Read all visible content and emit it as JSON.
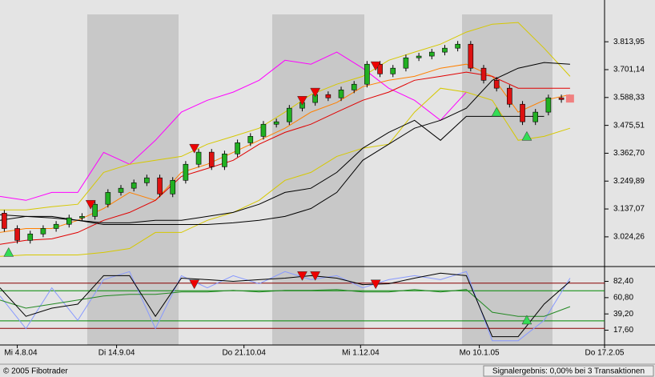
{
  "chart_data": {
    "type": "candlestick",
    "xlim": [
      0,
      140
    ],
    "ylim": [
      2904,
      3983
    ],
    "xticks": [
      {
        "value": 4,
        "label": "Mi 4.8.04"
      },
      {
        "value": 27,
        "label": "Di 14.9.04"
      },
      {
        "value": 56.5,
        "label": "Do 21.10.04"
      },
      {
        "value": 83.5,
        "label": "Mi 1.12.04"
      },
      {
        "value": 111,
        "label": "Mo 10.1.05"
      },
      {
        "value": 140,
        "label": "Do 17.2.05"
      }
    ],
    "yticks": [
      {
        "value": 3813.95,
        "label": "3.813,95"
      },
      {
        "value": 3701.14,
        "label": "3.701,14"
      },
      {
        "value": 3588.33,
        "label": "3.588,33"
      },
      {
        "value": 3475.51,
        "label": "3.475,51"
      },
      {
        "value": 3362.7,
        "label": "3.362,70"
      },
      {
        "value": 3249.89,
        "label": "3.249,89"
      },
      {
        "value": 3137.07,
        "label": "3.137,07"
      },
      {
        "value": 3024.26,
        "label": "3.024,26"
      }
    ],
    "candles": {
      "up_color": "#22b022",
      "down_color": "#dd1111",
      "x": [
        1,
        4,
        7,
        10,
        13,
        16,
        19,
        22,
        25,
        28,
        31,
        34,
        37,
        40,
        43,
        46,
        49,
        52,
        55,
        58,
        61,
        64,
        67,
        70,
        73,
        76,
        79,
        82,
        85,
        88,
        91,
        94,
        97,
        100,
        103,
        106,
        109,
        112,
        115,
        118,
        121,
        124,
        127,
        130
      ],
      "open": [
        3120,
        3058,
        3010,
        3036,
        3058,
        3075,
        3101,
        3107,
        3156,
        3204,
        3221,
        3243,
        3263,
        3198,
        3253,
        3318,
        3367,
        3308,
        3360,
        3405,
        3431,
        3480,
        3490,
        3545,
        3568,
        3600,
        3587,
        3619,
        3642,
        3723,
        3684,
        3707,
        3749,
        3756,
        3772,
        3788,
        3804,
        3707,
        3658,
        3626,
        3561,
        3490,
        3529,
        3587
      ],
      "close": [
        3058,
        3010,
        3036,
        3058,
        3075,
        3101,
        3107,
        3156,
        3204,
        3221,
        3243,
        3263,
        3198,
        3253,
        3318,
        3367,
        3308,
        3360,
        3405,
        3431,
        3480,
        3490,
        3545,
        3568,
        3600,
        3587,
        3619,
        3642,
        3723,
        3684,
        3707,
        3749,
        3756,
        3772,
        3788,
        3804,
        3707,
        3658,
        3626,
        3561,
        3490,
        3529,
        3587,
        3580
      ]
    },
    "series": [
      {
        "color": "#ff00ff",
        "x": [
          0,
          6,
          12,
          18,
          24,
          30,
          36,
          42,
          48,
          54,
          60,
          66,
          72,
          78,
          84,
          90,
          96,
          102,
          108,
          114,
          120,
          126,
          132
        ],
        "values": [
          3188,
          3172,
          3204,
          3204,
          3366,
          3318,
          3415,
          3529,
          3577,
          3610,
          3658,
          3739,
          3723,
          3772,
          3707,
          3626,
          3577,
          3496,
          3610,
          null,
          null,
          null,
          null
        ]
      },
      {
        "color": "#d6c800",
        "x": [
          0,
          6,
          12,
          18,
          24,
          30,
          36,
          42,
          48,
          54,
          60,
          66,
          72,
          78,
          84,
          90,
          96,
          102,
          108,
          114,
          120,
          126,
          132
        ],
        "values": [
          3133,
          3133,
          3146,
          3156,
          3285,
          3318,
          3334,
          3350,
          3399,
          3431,
          3464,
          3529,
          3600,
          3642,
          3674,
          3739,
          3772,
          3804,
          3853,
          3885,
          3892,
          3788,
          3674
        ]
      },
      {
        "color": "#d6c800",
        "x": [
          0,
          6,
          12,
          18,
          24,
          30,
          36,
          42,
          48,
          54,
          60,
          66,
          72,
          78,
          84,
          90,
          96,
          102,
          108,
          114,
          120,
          126,
          132
        ],
        "values": [
          2945,
          2951,
          2951,
          2951,
          2961,
          2977,
          3042,
          3042,
          3091,
          3123,
          3172,
          3253,
          3285,
          3350,
          3383,
          3399,
          3529,
          3626,
          3610,
          3577,
          3415,
          3431,
          3464
        ]
      },
      {
        "color": "#ff8000",
        "x": [
          0,
          6,
          12,
          18,
          24,
          30,
          36,
          42,
          48,
          54,
          60,
          66,
          72,
          78,
          84,
          90,
          96,
          102,
          108,
          114,
          120,
          126,
          132
        ],
        "values": [
          3042,
          3058,
          3058,
          3091,
          3139,
          3204,
          3172,
          3285,
          3318,
          3366,
          3415,
          3464,
          3529,
          3568,
          3632,
          3658,
          3674,
          3707,
          3723,
          3674,
          3529,
          3577,
          3600
        ]
      },
      {
        "color": "#e00000",
        "x": [
          0,
          6,
          12,
          18,
          24,
          30,
          36,
          42,
          48,
          54,
          60,
          66,
          72,
          78,
          84,
          90,
          96,
          102,
          108,
          114,
          120,
          126,
          132
        ],
        "values": [
          2994,
          3010,
          3016,
          3042,
          3091,
          3123,
          3172,
          3269,
          3301,
          3334,
          3399,
          3447,
          3480,
          3529,
          3577,
          3610,
          3658,
          3674,
          3691,
          3674,
          3626,
          3626,
          3626
        ]
      },
      {
        "color": "#000000",
        "x": [
          0,
          6,
          12,
          18,
          24,
          30,
          36,
          42,
          48,
          54,
          60,
          66,
          72,
          78,
          84,
          90,
          96,
          102,
          108,
          114,
          120,
          126,
          132
        ],
        "values": [
          3091,
          3107,
          3107,
          3091,
          3074,
          3074,
          3074,
          3074,
          3074,
          3081,
          3091,
          3107,
          3139,
          3204,
          3334,
          3399,
          3464,
          3496,
          3545,
          3658,
          3707,
          3730,
          3723
        ]
      },
      {
        "color": "#000000",
        "x": [
          0,
          6,
          12,
          18,
          24,
          30,
          36,
          42,
          48,
          54,
          60,
          66,
          72,
          78,
          84,
          90,
          96,
          102,
          108,
          114,
          120,
          126,
          132
        ],
        "values": [
          3114,
          3107,
          3101,
          3091,
          3081,
          3081,
          3091,
          3091,
          3107,
          3123,
          3156,
          3204,
          3221,
          3285,
          3383,
          3447,
          3496,
          3415,
          3512,
          3512,
          3512,
          3512,
          null
        ]
      }
    ],
    "markers": [
      {
        "shape": "up",
        "color": "#33dd55",
        "x": 2,
        "value": 2961
      },
      {
        "shape": "down",
        "color": "#ee0000",
        "x": 21,
        "value": 3156
      },
      {
        "shape": "down",
        "color": "#ee0000",
        "x": 45,
        "value": 3383
      },
      {
        "shape": "down",
        "color": "#ee0000",
        "x": 70,
        "value": 3577
      },
      {
        "shape": "down",
        "color": "#ee0000",
        "x": 73,
        "value": 3610
      },
      {
        "shape": "down",
        "color": "#ee0000",
        "x": 87,
        "value": 3717
      },
      {
        "shape": "up",
        "color": "#33dd55",
        "x": 115,
        "value": 3529
      },
      {
        "shape": "up",
        "color": "#33dd55",
        "x": 122,
        "value": 3431
      },
      {
        "shape": "square",
        "color": "#f08080",
        "x": 132,
        "value": 3584
      }
    ],
    "oscillator": {
      "ylim": [
        -2,
        101
      ],
      "yticks": [
        {
          "value": 82.4,
          "label": "82,40"
        },
        {
          "value": 60.8,
          "label": "60,80"
        },
        {
          "value": 39.2,
          "label": "39,20"
        },
        {
          "value": 17.6,
          "label": "17,60"
        }
      ],
      "levels": [
        {
          "value": 80,
          "color": "#880000"
        },
        {
          "value": 70,
          "color": "#008800"
        },
        {
          "value": 30,
          "color": "#008800"
        },
        {
          "value": 20,
          "color": "#880000"
        }
      ],
      "series": [
        {
          "color": "#8899ff",
          "x": [
            0,
            6,
            12,
            18,
            24,
            30,
            36,
            42,
            48,
            54,
            60,
            66,
            72,
            78,
            84,
            90,
            96,
            102,
            108,
            114,
            120,
            126,
            132
          ],
          "values": [
            63,
            19.8,
            73.8,
            30.6,
            84.6,
            95.4,
            19.8,
            90,
            73.8,
            90,
            79.2,
            95.4,
            84.6,
            90,
            73.8,
            84.6,
            90,
            84.6,
            95.4,
            3.6,
            3.6,
            30.6,
            86.7
          ]
        },
        {
          "color": "#228822",
          "x": [
            0,
            6,
            12,
            18,
            24,
            30,
            36,
            42,
            48,
            54,
            60,
            66,
            72,
            78,
            84,
            90,
            96,
            102,
            108,
            114,
            120,
            126,
            132
          ],
          "values": [
            57.6,
            46.8,
            52.2,
            57.6,
            63,
            65.1,
            65.1,
            68.4,
            68.4,
            70.5,
            68.4,
            70.5,
            70.5,
            71.6,
            68.4,
            68.4,
            71.6,
            68.4,
            71.6,
            41.4,
            36,
            36,
            48.9
          ]
        },
        {
          "color": "#000000",
          "x": [
            0,
            6,
            12,
            18,
            24,
            30,
            36,
            42,
            48,
            54,
            60,
            66,
            72,
            78,
            84,
            90,
            96,
            102,
            108,
            114,
            120,
            126,
            132
          ],
          "values": [
            73.8,
            36,
            46.8,
            52.2,
            90,
            90,
            36,
            86.7,
            84.6,
            82.4,
            84.6,
            86.7,
            90,
            86.7,
            78.1,
            79.2,
            86.7,
            93.2,
            90,
            9,
            9,
            52.2,
            82.4
          ]
        }
      ],
      "markers": [
        {
          "shape": "down",
          "color": "#ee0000",
          "x": 45,
          "value": 79
        },
        {
          "shape": "down",
          "color": "#ee0000",
          "x": 70,
          "value": 90
        },
        {
          "shape": "down",
          "color": "#ee0000",
          "x": 73,
          "value": 90
        },
        {
          "shape": "down",
          "color": "#ee0000",
          "x": 87,
          "value": 79
        },
        {
          "shape": "up",
          "color": "#33dd55",
          "x": 122,
          "value": 31
        }
      ]
    }
  },
  "footer": {
    "copyright": "© 2005 Fibotrader",
    "signal_result": "Signalergebnis: 0,00% bei 3 Transaktionen"
  }
}
